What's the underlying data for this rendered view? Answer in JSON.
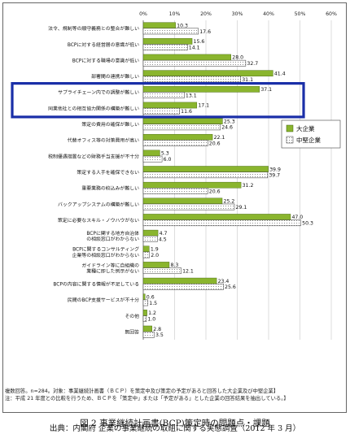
{
  "chart_data": {
    "type": "bar",
    "orientation": "horizontal",
    "xlim": [
      0,
      60
    ],
    "xticks": [
      "0%",
      "10%",
      "20%",
      "30%",
      "40%",
      "50%",
      "60%"
    ],
    "grid": true,
    "legend_position": "right",
    "categories": [
      "法令、規制等の順守義務との整合が難しい",
      "BCPに対する経営層の意識が低い",
      "BCPに対する職場の意識が低い",
      "部署間の連携が難しい",
      "サプライチェーン内での調整が難しい",
      "同業他社との相互協力関係の構築が難しい",
      "策定の費用の確保が難しい",
      "代替オフィス等の対策費用が高い",
      "税制優遇措置などの財務手当支援が不十分",
      "策定する人手を確保できない",
      "重要業務の絞込みが難しい",
      "バックアップシステムの構築が難しい",
      "策定に必要なスキル・ノウハウがない",
      "BCPに関する地方自治体の相談窓口がわからない",
      "BCPに関するコンサルティング企業等の相談窓口がわからない",
      "ガイドライン等に自組織の業種に即した例示がない",
      "BCPの内容に関する情報が不足している",
      "民間のBCP支援サービスが不十分",
      "その他",
      "無回答"
    ],
    "series": [
      {
        "name": "大企業",
        "color": "#8ab52e",
        "values": [
          10.3,
          15.6,
          28.0,
          41.4,
          37.1,
          17.1,
          25.3,
          22.1,
          5.3,
          39.9,
          31.2,
          25.2,
          47.0,
          4.7,
          1.9,
          8.3,
          23.4,
          0.6,
          1.2,
          2.8
        ]
      },
      {
        "name": "中堅企業",
        "color": "#ffffff",
        "values": [
          17.6,
          14.1,
          32.7,
          31.1,
          13.1,
          11.6,
          24.6,
          20.6,
          6.0,
          39.7,
          20.6,
          29.1,
          50.3,
          4.5,
          2.0,
          12.1,
          25.6,
          1.5,
          1.0,
          3.5
        ]
      }
    ]
  },
  "notes": {
    "line1": "複数回答。n=284。対象：事業継続計画書（ＢＣＰ）を策定中及び策定の予定があると回答した大企業及び中堅企業】",
    "line2": "注：平成 21 年度との比較を行うため、ＢＣＰを「策定中」または「予定がある」とした企業の回答結果を抽出している。】"
  },
  "caption": {
    "title": "図 2  事業継続計画書(BCP)策定時の問題点・課題",
    "source": "出典：内閣府  企業の事業継続の取組に関する実態調査（2012 年 3 月）"
  },
  "colors": {
    "highlight_box": "#1a2fa8",
    "large_fill": "#8ab52e",
    "large_stroke": "#3d5e0a",
    "gridline": "#bbbbbb"
  }
}
